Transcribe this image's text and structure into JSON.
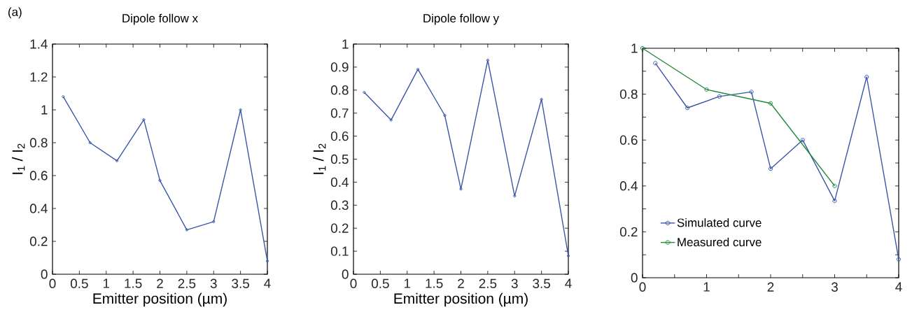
{
  "chart_data": [
    {
      "type": "line",
      "title": "Dipole follow x",
      "xlabel": "Emitter position (µm)",
      "ylabel": "I$_{1}$ / I$_{2}$",
      "annotations": [
        "(a)"
      ],
      "marker": "circle",
      "x": [
        0.2,
        0.7,
        1.2,
        1.7,
        2,
        2.5,
        3,
        3.5,
        4
      ],
      "series": [
        {
          "color": "#3a56a8",
          "values": [
            1.08,
            0.8,
            0.69,
            0.94,
            0.57,
            0.27,
            0.32,
            1.0,
            0.08
          ]
        }
      ],
      "xlim": [
        0,
        4
      ],
      "xticks": [
        0,
        0.5,
        1,
        1.5,
        2,
        2.5,
        3,
        3.5,
        4
      ],
      "ylim": [
        0,
        1.4
      ],
      "yticks": [
        0,
        0.2,
        0.4,
        0.6,
        0.8,
        1,
        1.2,
        1.4
      ]
    },
    {
      "type": "line",
      "title": "Dipole follow y",
      "xlabel": "Emitter position (µm)",
      "ylabel": "I$_{1}$ / I$_{2}$",
      "marker": "circle",
      "x": [
        0.2,
        0.7,
        1.2,
        1.7,
        2,
        2.5,
        3,
        3.5,
        4
      ],
      "series": [
        {
          "color": "#3a56a8",
          "values": [
            0.79,
            0.67,
            0.89,
            0.69,
            0.37,
            0.93,
            0.34,
            0.76,
            0.08
          ]
        }
      ],
      "xlim": [
        0,
        4
      ],
      "xticks": [
        0,
        0.5,
        1,
        1.5,
        2,
        2.5,
        3,
        3.5,
        4
      ],
      "ylim": [
        0,
        1
      ],
      "yticks": [
        0,
        0.1,
        0.2,
        0.3,
        0.4,
        0.5,
        0.6,
        0.7,
        0.8,
        0.9,
        1
      ]
    },
    {
      "type": "line",
      "marker": "circle",
      "legend": "bottom left",
      "series": [
        {
          "name": "Simulated curve",
          "color": "#3a56a8",
          "x": [
            0.2,
            0.7,
            1.2,
            1.7,
            2,
            2.5,
            3,
            3.5,
            4
          ],
          "values": [
            0.935,
            0.74,
            0.79,
            0.81,
            0.475,
            0.6,
            0.335,
            0.875,
            0.08
          ]
        },
        {
          "name": "Measured curve",
          "color": "#1e8a3c",
          "x": [
            0,
            1,
            2,
            3
          ],
          "values": [
            1.0,
            0.82,
            0.76,
            0.4
          ]
        }
      ],
      "xlim": [
        0,
        4
      ],
      "xticks": [
        0,
        {
          "value": 0.5,
          "label": null
        },
        1,
        {
          "value": 1.5,
          "label": null
        },
        2,
        {
          "value": 2.5,
          "label": null
        },
        3,
        {
          "value": 3.5,
          "label": null
        },
        4
      ],
      "ylim": [
        0,
        1
      ],
      "yticks": [
        0,
        {
          "value": 0.1,
          "label": null
        },
        0.2,
        {
          "value": 0.3,
          "label": null
        },
        0.4,
        {
          "value": 0.5,
          "label": null
        },
        0.6,
        {
          "value": 0.7,
          "label": null
        },
        0.8,
        {
          "value": 0.9,
          "label": null
        },
        1
      ]
    }
  ]
}
